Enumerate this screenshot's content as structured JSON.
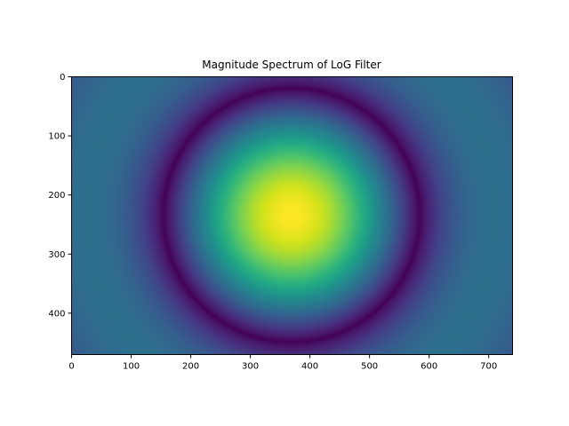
{
  "chart_data": {
    "type": "heatmap",
    "title": "Magnitude Spectrum of LoG Filter",
    "xlabel": "",
    "ylabel": "",
    "image_width": 740,
    "image_height": 470,
    "xlim": [
      0,
      740
    ],
    "ylim": [
      470,
      0
    ],
    "xticks": [
      0,
      100,
      200,
      300,
      400,
      500,
      600,
      700
    ],
    "yticks": [
      0,
      100,
      200,
      300,
      400
    ],
    "center": [
      370,
      235
    ],
    "peak_radius": 0,
    "zero_ring_radius": 215,
    "colormap": "viridis",
    "grid": false,
    "legend": "none"
  }
}
